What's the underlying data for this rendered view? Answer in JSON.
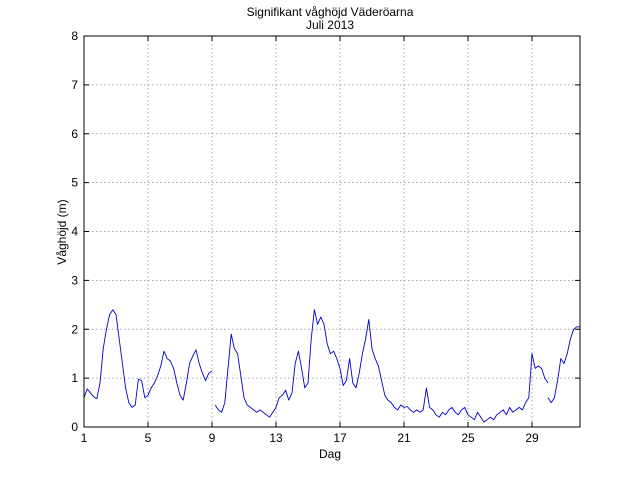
{
  "chart_data": {
    "type": "line",
    "title": "Signifikant våghöjd Väderöarna",
    "subtitle": "Juli 2013",
    "xlabel": "Dag",
    "ylabel": "Våghöjd (m)",
    "xlim": [
      1,
      32
    ],
    "ylim": [
      0,
      8
    ],
    "xticks": [
      1,
      5,
      9,
      13,
      17,
      21,
      25,
      29
    ],
    "yticks": [
      0,
      1,
      2,
      3,
      4,
      5,
      6,
      7,
      8
    ],
    "grid": true,
    "line_color": "#0000cc",
    "segments": [
      [
        [
          1.0,
          0.6
        ],
        [
          1.2,
          0.78
        ],
        [
          1.4,
          0.7
        ],
        [
          1.6,
          0.62
        ],
        [
          1.8,
          0.58
        ],
        [
          2.0,
          0.9
        ],
        [
          2.2,
          1.6
        ],
        [
          2.4,
          2.0
        ],
        [
          2.6,
          2.3
        ],
        [
          2.8,
          2.4
        ],
        [
          3.0,
          2.3
        ],
        [
          3.2,
          1.8
        ],
        [
          3.4,
          1.3
        ],
        [
          3.6,
          0.8
        ],
        [
          3.8,
          0.5
        ],
        [
          4.0,
          0.4
        ],
        [
          4.2,
          0.45
        ],
        [
          4.4,
          0.98
        ],
        [
          4.6,
          0.95
        ],
        [
          4.8,
          0.6
        ],
        [
          5.0,
          0.65
        ],
        [
          5.2,
          0.8
        ],
        [
          5.4,
          0.9
        ],
        [
          5.6,
          1.05
        ],
        [
          5.8,
          1.25
        ],
        [
          6.0,
          1.55
        ],
        [
          6.2,
          1.4
        ],
        [
          6.4,
          1.35
        ],
        [
          6.6,
          1.2
        ],
        [
          6.8,
          0.9
        ],
        [
          7.0,
          0.65
        ],
        [
          7.2,
          0.55
        ],
        [
          7.4,
          0.9
        ],
        [
          7.6,
          1.3
        ],
        [
          7.8,
          1.45
        ],
        [
          8.0,
          1.58
        ],
        [
          8.2,
          1.3
        ],
        [
          8.4,
          1.1
        ],
        [
          8.6,
          0.95
        ],
        [
          8.8,
          1.1
        ],
        [
          9.0,
          1.15
        ]
      ],
      [
        [
          9.2,
          0.45
        ],
        [
          9.4,
          0.35
        ],
        [
          9.6,
          0.3
        ],
        [
          9.8,
          0.5
        ],
        [
          10.0,
          1.2
        ],
        [
          10.2,
          1.9
        ],
        [
          10.4,
          1.6
        ],
        [
          10.6,
          1.5
        ],
        [
          10.8,
          1.05
        ],
        [
          11.0,
          0.6
        ],
        [
          11.2,
          0.45
        ],
        [
          11.4,
          0.4
        ],
        [
          11.6,
          0.35
        ],
        [
          11.8,
          0.3
        ],
        [
          12.0,
          0.35
        ],
        [
          12.2,
          0.3
        ],
        [
          12.4,
          0.25
        ],
        [
          12.6,
          0.2
        ],
        [
          12.8,
          0.3
        ],
        [
          13.0,
          0.4
        ],
        [
          13.2,
          0.6
        ],
        [
          13.4,
          0.65
        ],
        [
          13.6,
          0.75
        ],
        [
          13.8,
          0.55
        ],
        [
          14.0,
          0.7
        ],
        [
          14.2,
          1.3
        ],
        [
          14.4,
          1.55
        ],
        [
          14.6,
          1.2
        ],
        [
          14.8,
          0.8
        ],
        [
          15.0,
          0.9
        ],
        [
          15.2,
          1.8
        ],
        [
          15.4,
          2.4
        ],
        [
          15.6,
          2.1
        ],
        [
          15.8,
          2.25
        ],
        [
          16.0,
          2.1
        ],
        [
          16.2,
          1.7
        ],
        [
          16.4,
          1.5
        ],
        [
          16.6,
          1.55
        ],
        [
          16.8,
          1.4
        ],
        [
          17.0,
          1.2
        ],
        [
          17.2,
          0.85
        ],
        [
          17.4,
          0.95
        ],
        [
          17.6,
          1.4
        ],
        [
          17.8,
          0.9
        ],
        [
          18.0,
          0.8
        ],
        [
          18.2,
          1.1
        ],
        [
          18.4,
          1.5
        ],
        [
          18.6,
          1.8
        ],
        [
          18.8,
          2.2
        ],
        [
          19.0,
          1.6
        ],
        [
          19.2,
          1.4
        ],
        [
          19.4,
          1.25
        ],
        [
          19.6,
          0.95
        ],
        [
          19.8,
          0.65
        ],
        [
          20.0,
          0.55
        ],
        [
          20.2,
          0.5
        ],
        [
          20.4,
          0.4
        ],
        [
          20.6,
          0.35
        ],
        [
          20.8,
          0.45
        ],
        [
          21.0,
          0.4
        ],
        [
          21.2,
          0.42
        ],
        [
          21.4,
          0.35
        ],
        [
          21.6,
          0.3
        ],
        [
          21.8,
          0.35
        ],
        [
          22.0,
          0.3
        ],
        [
          22.2,
          0.35
        ],
        [
          22.4,
          0.8
        ],
        [
          22.6,
          0.4
        ],
        [
          22.8,
          0.35
        ],
        [
          23.0,
          0.25
        ],
        [
          23.2,
          0.2
        ],
        [
          23.4,
          0.3
        ],
        [
          23.6,
          0.25
        ],
        [
          23.8,
          0.35
        ],
        [
          24.0,
          0.4
        ],
        [
          24.2,
          0.3
        ],
        [
          24.4,
          0.25
        ],
        [
          24.6,
          0.35
        ],
        [
          24.8,
          0.4
        ],
        [
          25.0,
          0.25
        ],
        [
          25.2,
          0.2
        ],
        [
          25.4,
          0.15
        ],
        [
          25.6,
          0.3
        ],
        [
          25.8,
          0.2
        ],
        [
          26.0,
          0.1
        ],
        [
          26.2,
          0.15
        ],
        [
          26.4,
          0.2
        ],
        [
          26.6,
          0.15
        ],
        [
          26.8,
          0.25
        ],
        [
          27.0,
          0.3
        ],
        [
          27.2,
          0.35
        ],
        [
          27.4,
          0.25
        ],
        [
          27.6,
          0.4
        ],
        [
          27.8,
          0.3
        ],
        [
          28.0,
          0.35
        ],
        [
          28.2,
          0.4
        ],
        [
          28.4,
          0.35
        ],
        [
          28.6,
          0.5
        ],
        [
          28.8,
          0.6
        ],
        [
          29.0,
          1.5
        ],
        [
          29.2,
          1.2
        ],
        [
          29.4,
          1.25
        ],
        [
          29.6,
          1.2
        ],
        [
          29.8,
          1.0
        ],
        [
          30.0,
          0.9
        ]
      ],
      [
        [
          30.0,
          0.6
        ],
        [
          30.2,
          0.5
        ],
        [
          30.4,
          0.6
        ],
        [
          30.6,
          0.95
        ],
        [
          30.8,
          1.4
        ],
        [
          31.0,
          1.3
        ],
        [
          31.2,
          1.5
        ],
        [
          31.4,
          1.8
        ],
        [
          31.6,
          2.0
        ],
        [
          31.8,
          2.05
        ],
        [
          32.0,
          2.05
        ]
      ]
    ]
  }
}
